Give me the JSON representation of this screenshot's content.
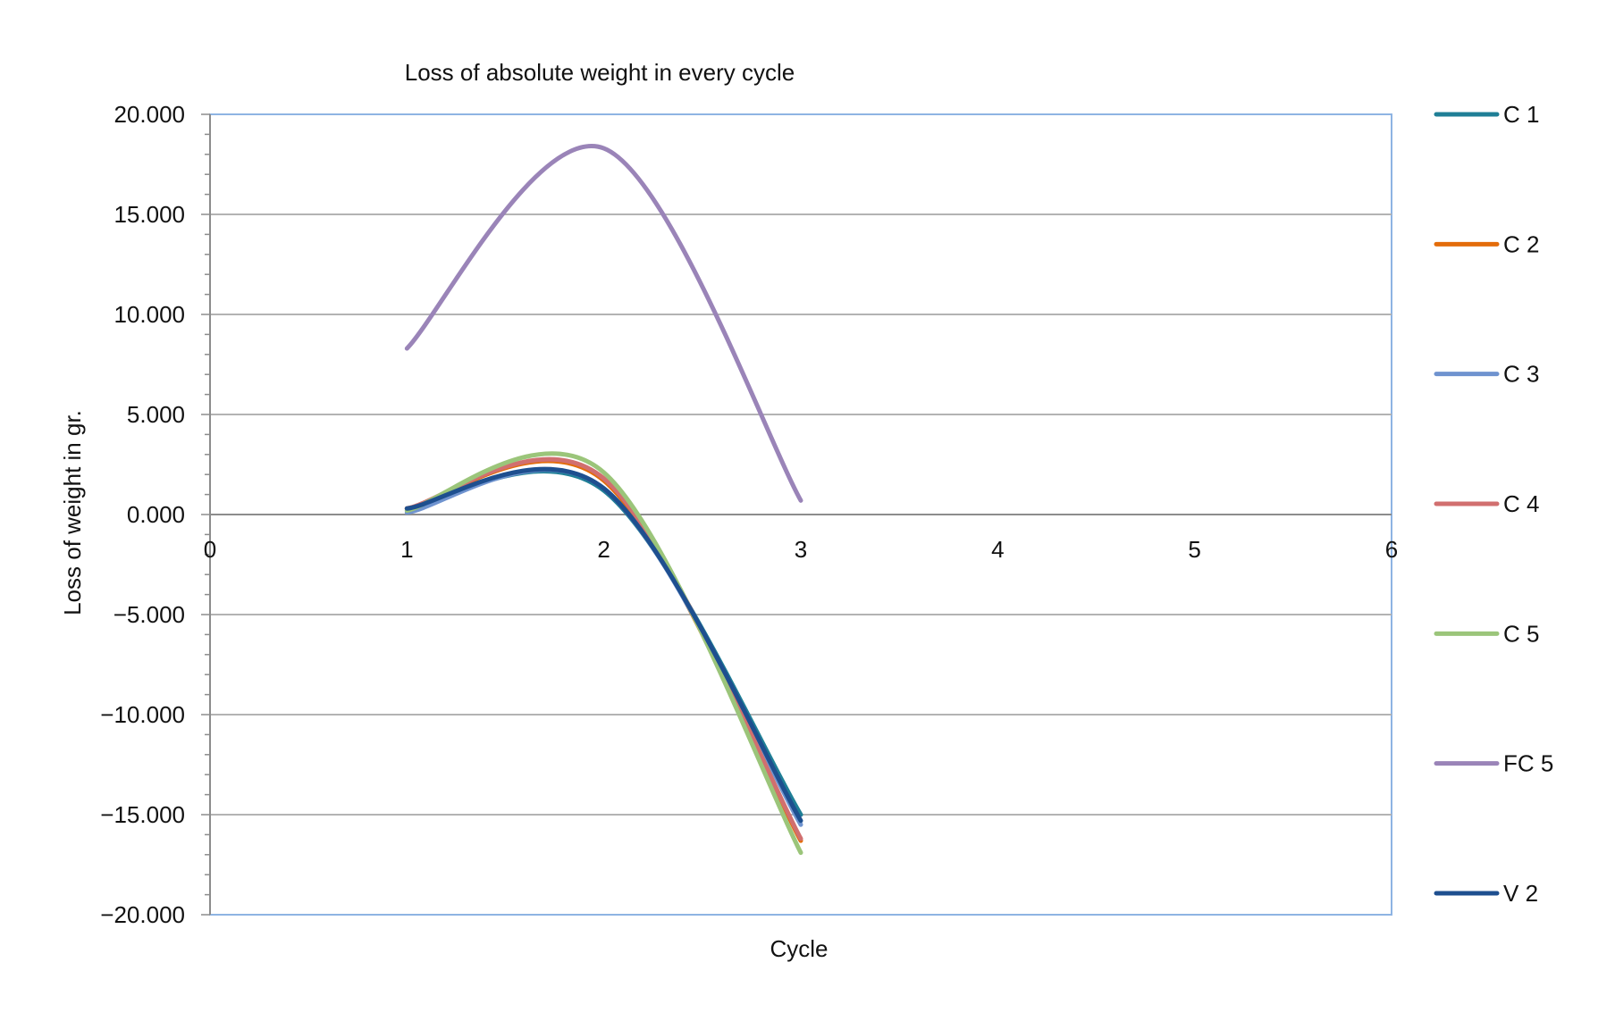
{
  "chart_data": {
    "type": "line",
    "title": "Loss of absolute weight in every cycle",
    "xlabel": "Cycle",
    "ylabel": "Loss of weight in gr.",
    "xlim": [
      0,
      6
    ],
    "ylim": [
      -20,
      20
    ],
    "x_ticks": [
      0,
      1,
      2,
      3,
      4,
      5,
      6
    ],
    "x_tick_labels": [
      "0",
      "1",
      "2",
      "3",
      "4",
      "5",
      "6"
    ],
    "y_ticks": [
      20,
      15,
      10,
      5,
      0,
      -5,
      -10,
      -15,
      -20
    ],
    "y_tick_labels": [
      "20.000",
      "15.000",
      "10.000",
      "5.000",
      "0.000",
      "−5.000",
      "−10.000",
      "−15.000",
      "−20.000"
    ],
    "grid": "horizontal major gridlines",
    "smooth_lines": true,
    "legend_position": "right",
    "x": [
      1,
      2,
      3
    ],
    "series": [
      {
        "name": "C 1",
        "color": "#1f7f96",
        "values": [
          0.3,
          1.2,
          -15.0
        ]
      },
      {
        "name": "C 2",
        "color": "#e36c0a",
        "values": [
          0.3,
          1.7,
          -16.3
        ]
      },
      {
        "name": "C 3",
        "color": "#6f93cf",
        "values": [
          0.1,
          1.3,
          -15.5
        ]
      },
      {
        "name": "C 4",
        "color": "#d16f6f",
        "values": [
          0.3,
          1.8,
          -16.2
        ]
      },
      {
        "name": "C 5",
        "color": "#9bc57a",
        "values": [
          0.2,
          2.1,
          -16.9
        ]
      },
      {
        "name": "FC 5",
        "color": "#9a84b8",
        "values": [
          8.3,
          18.3,
          0.7
        ]
      },
      {
        "name": "V 2",
        "color": "#1e4f8f",
        "values": [
          0.3,
          1.3,
          -15.3
        ]
      }
    ]
  }
}
